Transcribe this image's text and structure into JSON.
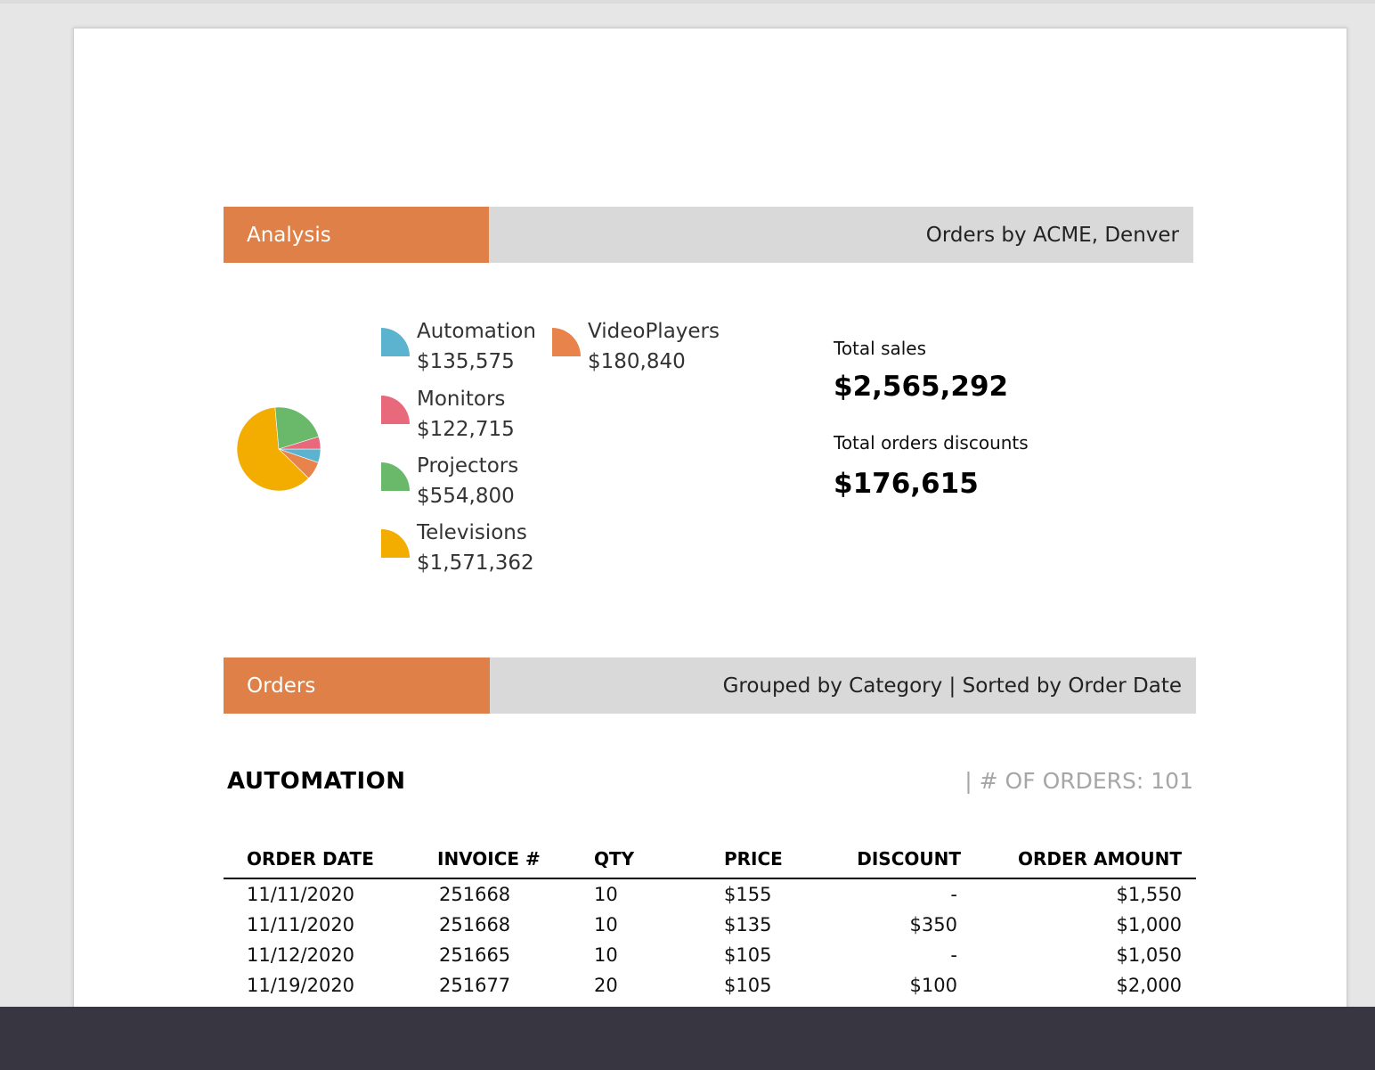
{
  "analysis_band": {
    "tag": "Analysis",
    "title": "Orders by ACME, Denver"
  },
  "chart_data": {
    "type": "pie",
    "categories": [
      "Automation",
      "Monitors",
      "Projectors",
      "Televisions",
      "VideoPlayers"
    ],
    "values": [
      135575,
      122715,
      554800,
      1571362,
      180840
    ],
    "value_labels": [
      "$135,575",
      "$122,715",
      "$554,800",
      "$1,571,362",
      "$180,840"
    ],
    "colors": [
      "#5cb3cf",
      "#e8687c",
      "#6ab96a",
      "#f2ad00",
      "#e8834c"
    ],
    "title": "",
    "legend_position": "right"
  },
  "summary": {
    "total_sales_label": "Total sales",
    "total_sales_value": "$2,565,292",
    "total_discounts_label": "Total orders discounts",
    "total_discounts_value": "$176,615"
  },
  "orders_band": {
    "tag": "Orders",
    "title": "Grouped by Category | Sorted by Order Date"
  },
  "group": {
    "title": "AUTOMATION",
    "count_text": "| # OF ORDERS: 101"
  },
  "table": {
    "columns": [
      "ORDER DATE",
      "INVOICE #",
      "QTY",
      "PRICE",
      "DISCOUNT",
      "ORDER AMOUNT"
    ],
    "rows": [
      [
        "11/11/2020",
        "251668",
        "10",
        "$155",
        "-",
        "$1,550"
      ],
      [
        "11/11/2020",
        "251668",
        "10",
        "$135",
        "$350",
        "$1,000"
      ],
      [
        "11/12/2020",
        "251665",
        "10",
        "$105",
        "-",
        "$1,050"
      ],
      [
        "11/19/2020",
        "251677",
        "20",
        "$105",
        "$100",
        "$2,000"
      ]
    ]
  }
}
